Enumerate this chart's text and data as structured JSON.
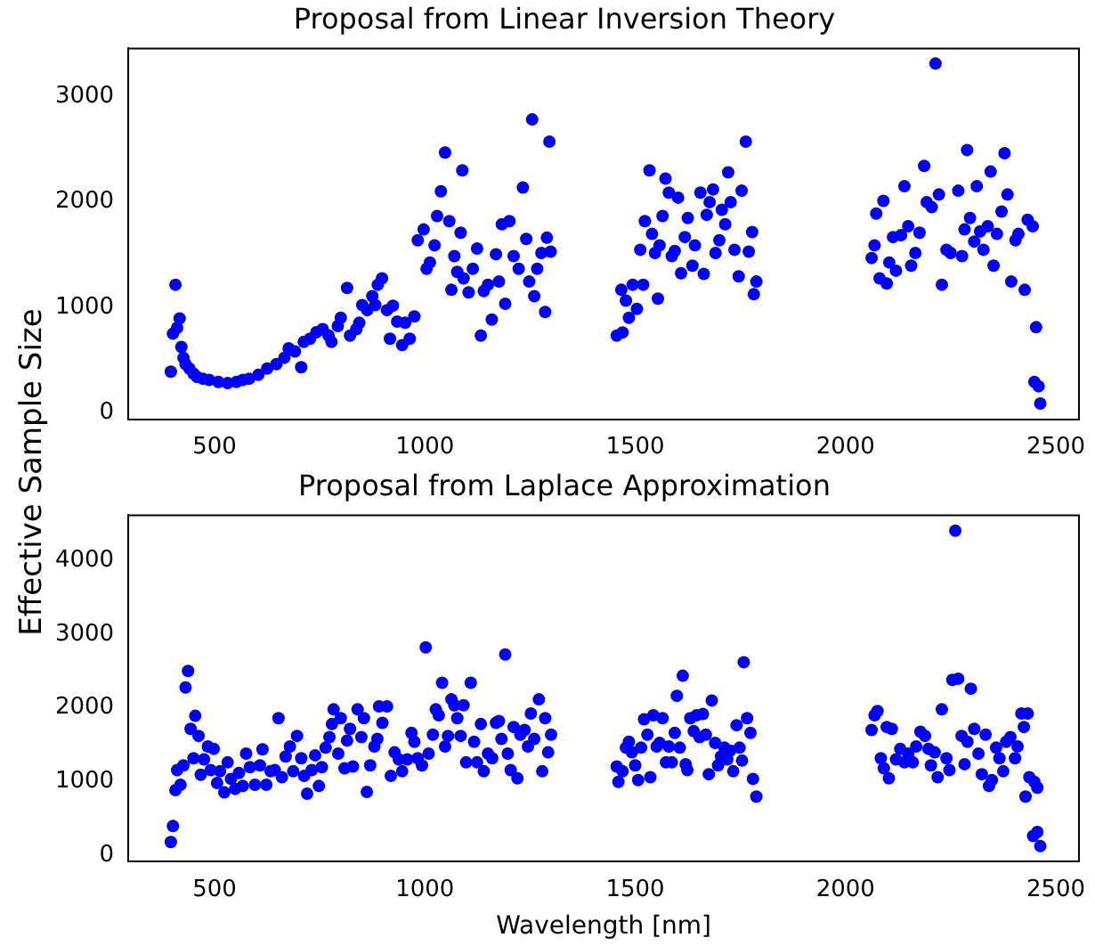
{
  "chart_data": [
    {
      "type": "scatter",
      "title": "Proposal from Linear Inversion Theory",
      "ylabel": "Effective Sample Size",
      "color": "#0000ff",
      "marker": "circle",
      "xlim": [
        295,
        2555
      ],
      "xticks": [
        500,
        1000,
        1500,
        2000,
        2500
      ],
      "ylim": [
        -60,
        3450
      ],
      "yticks": [
        0,
        1000,
        2000,
        3000
      ],
      "x": [
        396,
        401,
        407,
        411,
        417,
        421,
        426,
        431,
        440,
        450,
        458,
        472,
        487,
        509,
        531,
        552,
        567,
        582,
        604,
        625,
        647,
        666,
        676,
        691,
        706,
        712,
        727,
        742,
        757,
        771,
        778,
        793,
        800,
        815,
        822,
        837,
        844,
        851,
        863,
        875,
        882,
        888,
        898,
        910,
        917,
        924,
        934,
        946,
        953,
        964,
        975,
        983,
        997,
        1004,
        1012,
        1023,
        1029,
        1038,
        1048,
        1058,
        1063,
        1070,
        1077,
        1085,
        1089,
        1092,
        1104,
        1114,
        1124,
        1133,
        1140,
        1150,
        1159,
        1169,
        1176,
        1183,
        1191,
        1201,
        1211,
        1223,
        1233,
        1241,
        1248,
        1255,
        1260,
        1267,
        1277,
        1286,
        1290,
        1296,
        1299,
        1456,
        1467,
        1470,
        1478,
        1485,
        1494,
        1504,
        1512,
        1519,
        1523,
        1534,
        1540,
        1547,
        1554,
        1558,
        1565,
        1572,
        1580,
        1587,
        1594,
        1602,
        1609,
        1618,
        1625,
        1636,
        1642,
        1655,
        1663,
        1670,
        1677,
        1685,
        1691,
        1700,
        1706,
        1714,
        1721,
        1727,
        1736,
        1746,
        1753,
        1763,
        1770,
        1778,
        1782,
        1788,
        2062,
        2069,
        2073,
        2081,
        2090,
        2098,
        2104,
        2113,
        2120,
        2132,
        2140,
        2149,
        2156,
        2166,
        2176,
        2187,
        2193,
        2205,
        2214,
        2222,
        2229,
        2240,
        2250,
        2268,
        2277,
        2283,
        2289,
        2296,
        2306,
        2312,
        2320,
        2328,
        2338,
        2345,
        2352,
        2360,
        2371,
        2378,
        2385,
        2394,
        2404,
        2411,
        2426,
        2433,
        2445,
        2453,
        2449,
        2459,
        2463
      ],
      "values": [
        391,
        751,
        1214,
        806,
        896,
        625,
        523,
        463,
        421,
        373,
        343,
        325,
        313,
        295,
        283,
        295,
        313,
        325,
        361,
        421,
        463,
        523,
        613,
        583,
        433,
        673,
        703,
        764,
        794,
        733,
        673,
        824,
        902,
        1184,
        733,
        794,
        854,
        1022,
        974,
        1106,
        1022,
        1214,
        1274,
        974,
        703,
        1016,
        866,
        643,
        854,
        703,
        914,
        1635,
        1737,
        1365,
        1425,
        1587,
        1864,
        2098,
        2465,
        1816,
        1166,
        1485,
        1335,
        1707,
        2297,
        1275,
        1142,
        1365,
        1557,
        733,
        1154,
        1214,
        884,
        1503,
        1244,
        1786,
        1034,
        1816,
        1485,
        1365,
        2134,
        1647,
        1244,
        2778,
        1106,
        1365,
        1515,
        956,
        1659,
        2568,
        1527,
        733,
        1166,
        763,
        1064,
        902,
        1214,
        986,
        1545,
        1214,
        1816,
        2297,
        1695,
        1515,
        1082,
        1587,
        1864,
        2218,
        2086,
        1485,
        1533,
        2038,
        1323,
        1665,
        1846,
        1395,
        1587,
        2086,
        1317,
        1876,
        1996,
        2116,
        1515,
        1635,
        1924,
        1786,
        2278,
        1996,
        1545,
        1293,
        2104,
        2568,
        1527,
        1713,
        1124,
        1244,
        1467,
        1587,
        1888,
        1274,
        2008,
        1226,
        1425,
        1665,
        1347,
        1683,
        2146,
        1768,
        1395,
        1515,
        1707,
        2339,
        1996,
        1948,
        3307,
        2068,
        1214,
        1545,
        1515,
        2104,
        1485,
        1737,
        2489,
        1846,
        1623,
        2146,
        1719,
        1545,
        1768,
        2285,
        1395,
        1695,
        1906,
        2459,
        2068,
        1244,
        1635,
        1695,
        1166,
        1828,
        1768,
        812,
        295,
        253,
        90
      ]
    },
    {
      "type": "scatter",
      "title": "Proposal from Laplace Approximation",
      "xlabel": "Wavelength [nm]",
      "color": "#0000ff",
      "marker": "circle",
      "xlim": [
        295,
        2555
      ],
      "xticks": [
        500,
        1000,
        1500,
        2000,
        2500
      ],
      "ylim": [
        -90,
        4620
      ],
      "yticks": [
        0,
        1000,
        2000,
        3000,
        4000
      ],
      "x": [
        396,
        401,
        407,
        411,
        419,
        426,
        431,
        437,
        443,
        450,
        454,
        462,
        467,
        475,
        484,
        491,
        498,
        506,
        513,
        523,
        531,
        539,
        549,
        558,
        567,
        575,
        584,
        596,
        608,
        614,
        623,
        633,
        643,
        652,
        660,
        669,
        679,
        687,
        696,
        706,
        713,
        720,
        731,
        739,
        748,
        755,
        764,
        773,
        779,
        783,
        794,
        800,
        809,
        815,
        822,
        829,
        840,
        849,
        855,
        862,
        870,
        880,
        887,
        891,
        899,
        910,
        919,
        928,
        938,
        946,
        958,
        968,
        975,
        983,
        993,
        1002,
        1009,
        1019,
        1026,
        1033,
        1041,
        1048,
        1055,
        1063,
        1070,
        1077,
        1085,
        1092,
        1098,
        1109,
        1117,
        1124,
        1133,
        1140,
        1150,
        1160,
        1169,
        1176,
        1182,
        1191,
        1197,
        1204,
        1211,
        1220,
        1227,
        1237,
        1245,
        1252,
        1260,
        1271,
        1279,
        1286,
        1293,
        1300,
        1456,
        1460,
        1470,
        1478,
        1485,
        1492,
        1500,
        1507,
        1514,
        1521,
        1529,
        1536,
        1543,
        1551,
        1558,
        1565,
        1573,
        1580,
        1587,
        1594,
        1599,
        1606,
        1613,
        1620,
        1624,
        1631,
        1639,
        1646,
        1653,
        1661,
        1668,
        1675,
        1682,
        1690,
        1697,
        1704,
        1712,
        1719,
        1726,
        1733,
        1741,
        1748,
        1754,
        1758,
        1766,
        1774,
        1780,
        1788,
        2062,
        2069,
        2076,
        2084,
        2091,
        2098,
        2103,
        2110,
        2120,
        2130,
        2140,
        2149,
        2160,
        2168,
        2178,
        2189,
        2197,
        2203,
        2212,
        2219,
        2229,
        2240,
        2247,
        2254,
        2261,
        2268,
        2276,
        2283,
        2290,
        2298,
        2306,
        2316,
        2324,
        2333,
        2341,
        2348,
        2358,
        2366,
        2375,
        2382,
        2392,
        2403,
        2409,
        2418,
        2424,
        2428,
        2433,
        2437,
        2449,
        2456,
        2446,
        2456,
        2463
      ],
      "values": [
        176,
        393,
        882,
        1154,
        954,
        1218,
        2277,
        2501,
        1715,
        1315,
        1892,
        1619,
        1090,
        1299,
        1475,
        1154,
        1443,
        978,
        1138,
        850,
        1259,
        1034,
        898,
        1114,
        938,
        1379,
        1194,
        954,
        1218,
        1435,
        954,
        1138,
        1154,
        1860,
        1058,
        1339,
        1475,
        1138,
        1619,
        1315,
        1074,
        834,
        1154,
        1355,
        938,
        1194,
        1459,
        1603,
        1780,
        1980,
        1379,
        1860,
        1178,
        1555,
        1715,
        1202,
        1980,
        1603,
        1860,
        858,
        1218,
        1475,
        1579,
        2020,
        1796,
        2020,
        1074,
        1395,
        1299,
        1138,
        1299,
        1659,
        1539,
        1315,
        1218,
        2822,
        1379,
        1635,
        1980,
        1900,
        2341,
        1475,
        1619,
        2116,
        2036,
        1860,
        1619,
        2036,
        1259,
        2341,
        1539,
        1259,
        1780,
        1138,
        1379,
        1315,
        1796,
        1820,
        1579,
        2726,
        1379,
        1154,
        1740,
        1042,
        1635,
        1700,
        1475,
        1924,
        1579,
        2116,
        1138,
        1860,
        1395,
        1635,
        1202,
        994,
        1138,
        1459,
        1539,
        1395,
        1218,
        1018,
        1459,
        1844,
        1635,
        1058,
        1900,
        1475,
        1523,
        1860,
        1259,
        1475,
        1259,
        1659,
        2164,
        1459,
        2437,
        1234,
        1154,
        1860,
        1683,
        1900,
        1603,
        1916,
        1635,
        1098,
        2100,
        1523,
        1218,
        1339,
        1459,
        1299,
        1419,
        1138,
        1764,
        1459,
        1283,
        2621,
        1860,
        1659,
        1034,
        794,
        1699,
        1900,
        1956,
        1315,
        1178,
        1740,
        1042,
        1715,
        1299,
        1443,
        1259,
        1379,
        1259,
        1475,
        1675,
        1619,
        1443,
        1218,
        1395,
        1058,
        1980,
        1315,
        1154,
        2381,
        4409,
        2397,
        1619,
        1234,
        1539,
        2261,
        1715,
        1379,
        1098,
        1635,
        938,
        1018,
        1459,
        1315,
        1138,
        1539,
        1603,
        1315,
        1475,
        1924,
        1740,
        794,
        1924,
        1058,
        994,
        914,
        257,
        313,
        120
      ]
    }
  ]
}
